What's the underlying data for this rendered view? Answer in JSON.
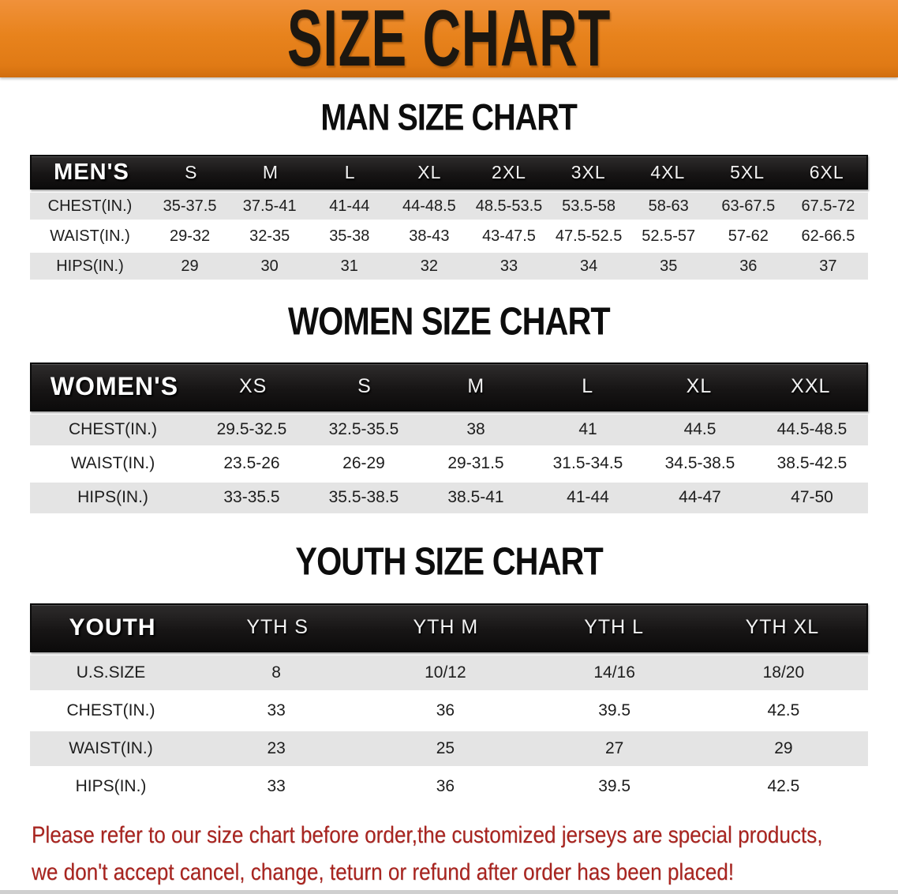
{
  "banner": {
    "title": "SIZE CHART",
    "background_color": "#e8831d",
    "text_color": "#1c1710"
  },
  "sections": [
    {
      "title": "MAN SIZE CHART",
      "header_label": "MEN'S",
      "columns": [
        "S",
        "M",
        "L",
        "XL",
        "2XL",
        "3XL",
        "4XL",
        "5XL",
        "6XL"
      ],
      "rows": [
        {
          "label": "CHEST(IN.)",
          "values": [
            "35-37.5",
            "37.5-41",
            "41-44",
            "44-48.5",
            "48.5-53.5",
            "53.5-58",
            "58-63",
            "63-67.5",
            "67.5-72"
          ]
        },
        {
          "label": "WAIST(IN.)",
          "values": [
            "29-32",
            "32-35",
            "35-38",
            "38-43",
            "43-47.5",
            "47.5-52.5",
            "52.5-57",
            "57-62",
            "62-66.5"
          ]
        },
        {
          "label": "HIPS(IN.)",
          "values": [
            "29",
            "30",
            "31",
            "32",
            "33",
            "34",
            "35",
            "36",
            "37"
          ]
        }
      ]
    },
    {
      "title": "WOMEN SIZE CHART",
      "header_label": "WOMEN'S",
      "columns": [
        "XS",
        "S",
        "M",
        "L",
        "XL",
        "XXL"
      ],
      "rows": [
        {
          "label": "CHEST(IN.)",
          "values": [
            "29.5-32.5",
            "32.5-35.5",
            "38",
            "41",
            "44.5",
            "44.5-48.5"
          ]
        },
        {
          "label": "WAIST(IN.)",
          "values": [
            "23.5-26",
            "26-29",
            "29-31.5",
            "31.5-34.5",
            "34.5-38.5",
            "38.5-42.5"
          ]
        },
        {
          "label": "HIPS(IN.)",
          "values": [
            "33-35.5",
            "35.5-38.5",
            "38.5-41",
            "41-44",
            "44-47",
            "47-50"
          ]
        }
      ]
    },
    {
      "title": "YOUTH SIZE CHART",
      "header_label": "YOUTH",
      "columns": [
        "YTH S",
        "YTH M",
        "YTH L",
        "YTH XL"
      ],
      "rows": [
        {
          "label": "U.S.SIZE",
          "values": [
            "8",
            "10/12",
            "14/16",
            "18/20"
          ]
        },
        {
          "label": "CHEST(IN.)",
          "values": [
            "33",
            "36",
            "39.5",
            "42.5"
          ]
        },
        {
          "label": "WAIST(IN.)",
          "values": [
            "23",
            "25",
            "27",
            "29"
          ]
        },
        {
          "label": "HIPS(IN.)",
          "values": [
            "33",
            "36",
            "39.5",
            "42.5"
          ]
        }
      ]
    }
  ],
  "disclaimer": {
    "line1": "Please refer to our size chart before order,the customized jerseys are special products,",
    "line2": "we don't accept cancel, change, teturn or refund after order has been placed!",
    "text_color": "#a9241f"
  },
  "colors": {
    "table_header_bg": "#1a1a1a",
    "table_header_text": "#ffffff",
    "row_stripe_gray": "#e4e4e4",
    "row_white": "#ffffff",
    "title_text": "#0d0d0d"
  }
}
